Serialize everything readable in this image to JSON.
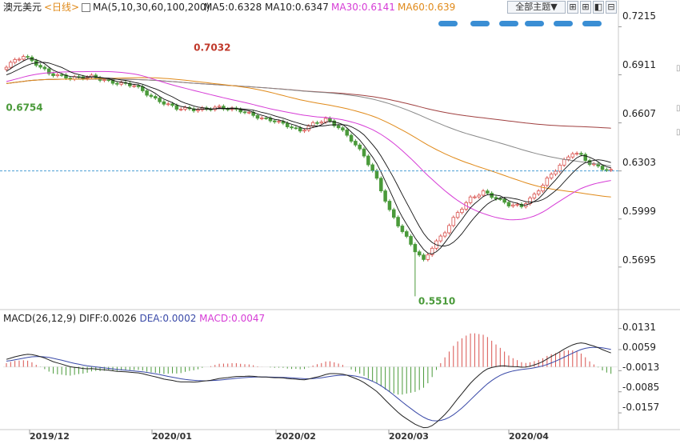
{
  "header": {
    "symbol": "澳元美元",
    "period": "<日线>",
    "ma_label": "MA(5,10,30,60,100,200)",
    "ma5": "MA5:0.6328",
    "ma10": "MA10:0.6347",
    "ma30": "MA30:0.6141",
    "ma60": "MA60:0.639"
  },
  "toolbar": {
    "main_select": "全部主题▼"
  },
  "macd_header": {
    "label": "MACD(26,12,9)",
    "diff": "DIFF:0.0026",
    "dea": "DEA:0.0002",
    "macd": "MACD:0.0047"
  },
  "colors": {
    "up": "#d9534f",
    "down": "#4a9a3a",
    "ma5": "#111111",
    "ma10": "#111111",
    "ma30": "#d63cd6",
    "ma60": "#e08a1a",
    "ma100": "#888888",
    "ma200": "#a04040",
    "diff": "#222222",
    "dea": "#3a4aa8",
    "last_price_line": "#4a9fd4"
  },
  "chart_data": [
    {
      "type": "candlestick",
      "x_labels": [
        "2019/12",
        "2020/01",
        "2020/02",
        "2020/03",
        "2020/04"
      ],
      "y_ticks": [
        0.7215,
        0.6911,
        0.6607,
        0.6303,
        0.5999,
        0.5695
      ],
      "ylim": [
        0.5441,
        0.7283
      ],
      "annotations": [
        {
          "label": "0.7032",
          "value": 0.7032
        },
        {
          "label": "0.6754",
          "value": 0.6754
        },
        {
          "label": "0.5510",
          "value": 0.551
        }
      ],
      "last_price": 0.6303
    },
    {
      "type": "macd",
      "title": "MACD(26,12,9)",
      "y_ticks": [
        0.0131,
        0.0059,
        -0.0013,
        -0.0085,
        -0.0157
      ],
      "ylim": [
        -0.0195,
        0.016
      ],
      "last": {
        "diff": 0.0026,
        "dea": 0.0002,
        "macd": 0.0047
      }
    }
  ]
}
